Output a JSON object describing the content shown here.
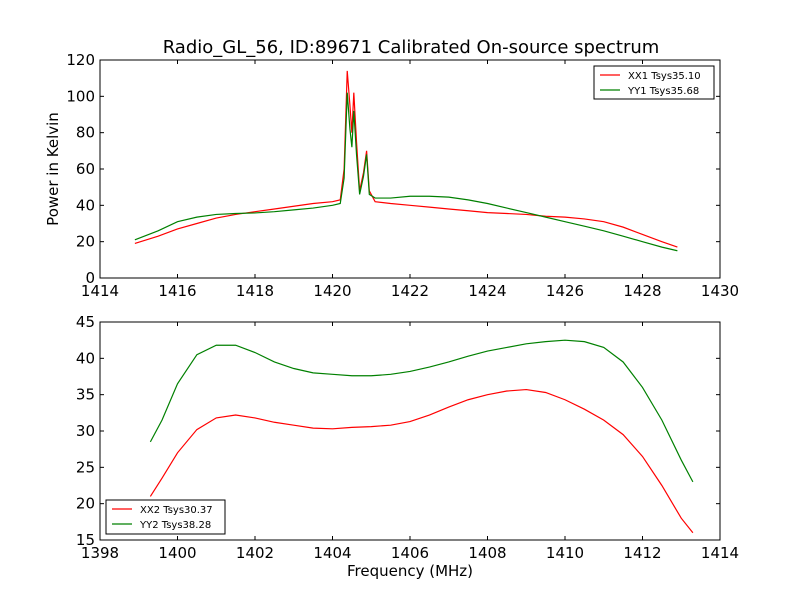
{
  "figure": {
    "title": "Radio_GL_56, ID:89671 Calibrated On-source spectrum"
  },
  "chart_data": [
    {
      "type": "line",
      "panel": "top",
      "xlabel": "",
      "ylabel": "Power in Kelvin",
      "xlim": [
        1414,
        1430
      ],
      "ylim": [
        0,
        120
      ],
      "xticks": [
        1414,
        1416,
        1418,
        1420,
        1422,
        1424,
        1426,
        1428,
        1430
      ],
      "yticks": [
        0,
        20,
        40,
        60,
        80,
        100,
        120
      ],
      "legend_position": "top-right",
      "series": [
        {
          "name": "XX1 Tsys35.10",
          "color": "#ff0000",
          "points": [
            [
              1414.9,
              19
            ],
            [
              1415.5,
              23
            ],
            [
              1416,
              27
            ],
            [
              1416.5,
              30
            ],
            [
              1417,
              33
            ],
            [
              1417.5,
              35
            ],
            [
              1418,
              36.5
            ],
            [
              1418.5,
              38
            ],
            [
              1419,
              39.5
            ],
            [
              1419.5,
              41
            ],
            [
              1420,
              42
            ],
            [
              1420.2,
              43
            ],
            [
              1420.3,
              60
            ],
            [
              1420.38,
              114
            ],
            [
              1420.45,
              95
            ],
            [
              1420.5,
              80
            ],
            [
              1420.55,
              102
            ],
            [
              1420.62,
              75
            ],
            [
              1420.7,
              48
            ],
            [
              1420.8,
              58
            ],
            [
              1420.88,
              70
            ],
            [
              1420.95,
              48
            ],
            [
              1421.1,
              42
            ],
            [
              1421.5,
              41
            ],
            [
              1422,
              40
            ],
            [
              1422.5,
              39
            ],
            [
              1423,
              38
            ],
            [
              1423.5,
              37
            ],
            [
              1424,
              36
            ],
            [
              1424.5,
              35.5
            ],
            [
              1425,
              35
            ],
            [
              1425.5,
              34
            ],
            [
              1426,
              33.5
            ],
            [
              1426.5,
              32.5
            ],
            [
              1427,
              31
            ],
            [
              1427.5,
              28
            ],
            [
              1428,
              24
            ],
            [
              1428.5,
              20
            ],
            [
              1428.9,
              17
            ]
          ]
        },
        {
          "name": "YY1 Tsys35.68",
          "color": "#008000",
          "points": [
            [
              1414.9,
              21
            ],
            [
              1415.5,
              26
            ],
            [
              1416,
              31
            ],
            [
              1416.5,
              33.5
            ],
            [
              1417,
              35
            ],
            [
              1417.5,
              35.5
            ],
            [
              1418,
              35.8
            ],
            [
              1418.5,
              36.5
            ],
            [
              1419,
              37.5
            ],
            [
              1419.5,
              38.5
            ],
            [
              1420,
              40
            ],
            [
              1420.2,
              41
            ],
            [
              1420.3,
              55
            ],
            [
              1420.38,
              102
            ],
            [
              1420.45,
              82
            ],
            [
              1420.5,
              72
            ],
            [
              1420.55,
              92
            ],
            [
              1420.62,
              68
            ],
            [
              1420.7,
              46
            ],
            [
              1420.8,
              56
            ],
            [
              1420.88,
              68
            ],
            [
              1420.95,
              46
            ],
            [
              1421.1,
              44
            ],
            [
              1421.5,
              44
            ],
            [
              1422,
              45
            ],
            [
              1422.5,
              45
            ],
            [
              1423,
              44.5
            ],
            [
              1423.5,
              43
            ],
            [
              1424,
              41
            ],
            [
              1424.5,
              38.5
            ],
            [
              1425,
              36
            ],
            [
              1425.5,
              33.5
            ],
            [
              1426,
              31
            ],
            [
              1426.5,
              28.5
            ],
            [
              1427,
              26
            ],
            [
              1427.5,
              23
            ],
            [
              1428,
              20
            ],
            [
              1428.5,
              17
            ],
            [
              1428.9,
              15
            ]
          ]
        }
      ]
    },
    {
      "type": "line",
      "panel": "bottom",
      "xlabel": "Frequency (MHz)",
      "ylabel": "",
      "xlim": [
        1398,
        1414
      ],
      "ylim": [
        15,
        45
      ],
      "xticks": [
        1398,
        1400,
        1402,
        1404,
        1406,
        1408,
        1410,
        1412,
        1414
      ],
      "yticks": [
        15,
        20,
        25,
        30,
        35,
        40,
        45
      ],
      "legend_position": "bottom-left",
      "series": [
        {
          "name": "XX2 Tsys30.37",
          "color": "#ff0000",
          "points": [
            [
              1399.3,
              21
            ],
            [
              1399.6,
              23.5
            ],
            [
              1400,
              27
            ],
            [
              1400.5,
              30.2
            ],
            [
              1401,
              31.8
            ],
            [
              1401.5,
              32.2
            ],
            [
              1402,
              31.8
            ],
            [
              1402.5,
              31.2
            ],
            [
              1403,
              30.8
            ],
            [
              1403.5,
              30.4
            ],
            [
              1404,
              30.3
            ],
            [
              1404.5,
              30.5
            ],
            [
              1405,
              30.6
            ],
            [
              1405.5,
              30.8
            ],
            [
              1406,
              31.3
            ],
            [
              1406.5,
              32.2
            ],
            [
              1407,
              33.3
            ],
            [
              1407.5,
              34.3
            ],
            [
              1408,
              35
            ],
            [
              1408.5,
              35.5
            ],
            [
              1409,
              35.7
            ],
            [
              1409.5,
              35.3
            ],
            [
              1410,
              34.3
            ],
            [
              1410.5,
              33
            ],
            [
              1411,
              31.5
            ],
            [
              1411.5,
              29.5
            ],
            [
              1412,
              26.5
            ],
            [
              1412.5,
              22.5
            ],
            [
              1413,
              18
            ],
            [
              1413.3,
              16
            ]
          ]
        },
        {
          "name": "YY2 Tsys38.28",
          "color": "#008000",
          "points": [
            [
              1399.3,
              28.5
            ],
            [
              1399.6,
              31.5
            ],
            [
              1400,
              36.5
            ],
            [
              1400.5,
              40.5
            ],
            [
              1401,
              41.8
            ],
            [
              1401.5,
              41.8
            ],
            [
              1402,
              40.8
            ],
            [
              1402.5,
              39.5
            ],
            [
              1403,
              38.6
            ],
            [
              1403.5,
              38
            ],
            [
              1404,
              37.8
            ],
            [
              1404.5,
              37.6
            ],
            [
              1405,
              37.6
            ],
            [
              1405.5,
              37.8
            ],
            [
              1406,
              38.2
            ],
            [
              1406.5,
              38.8
            ],
            [
              1407,
              39.5
            ],
            [
              1407.5,
              40.3
            ],
            [
              1408,
              41
            ],
            [
              1408.5,
              41.5
            ],
            [
              1409,
              42
            ],
            [
              1409.5,
              42.3
            ],
            [
              1410,
              42.5
            ],
            [
              1410.5,
              42.3
            ],
            [
              1411,
              41.5
            ],
            [
              1411.5,
              39.5
            ],
            [
              1412,
              36
            ],
            [
              1412.5,
              31.5
            ],
            [
              1413,
              26
            ],
            [
              1413.3,
              23
            ]
          ]
        }
      ]
    }
  ]
}
